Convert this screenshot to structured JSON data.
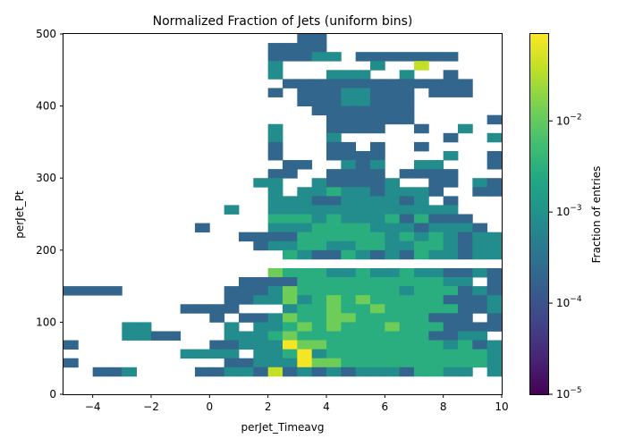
{
  "chart_data": {
    "type": "heatmap",
    "title": "Normalized Fraction of Jets (uniform bins)",
    "xlabel": "perJet_Timeavg",
    "ylabel": "perJet_Pt",
    "xlim": [
      -5,
      10
    ],
    "ylim": [
      0,
      500
    ],
    "x_ticks": [
      -4,
      -2,
      0,
      2,
      4,
      6,
      8,
      10
    ],
    "y_ticks": [
      0,
      100,
      200,
      300,
      400,
      500
    ],
    "x_tick_labels": [
      "−4",
      "−2",
      "0",
      "2",
      "4",
      "6",
      "8",
      "10"
    ],
    "y_tick_labels": [
      "0",
      "100",
      "200",
      "300",
      "400",
      "500"
    ],
    "bin_size": {
      "x": 0.5,
      "y": 12.5
    },
    "x_bin_start": -5,
    "colormap": "viridis",
    "colorbar": {
      "label": "Fraction of entries",
      "scale": "log",
      "range": [
        1e-05,
        0.09
      ],
      "tick_labels": [
        {
          "value": 1e-05,
          "base": "10",
          "exp": "−5"
        },
        {
          "value": 0.0001,
          "base": "10",
          "exp": "−4"
        },
        {
          "value": 0.001,
          "base": "10",
          "exp": "−3"
        },
        {
          "value": 0.01,
          "base": "10",
          "exp": "−2"
        }
      ]
    },
    "grid": false,
    "rows": [
      {
        "y_low": 487.5,
        "x0": -5,
        "values": "................zz"
      },
      {
        "y_low": 475,
        "x0": -5,
        "values": "..............zzzz"
      },
      {
        "y_low": 462.5,
        "x0": -5,
        "values": "..............zzzaa.zzzzzzz"
      },
      {
        "y_low": 450,
        "x0": -5,
        "values": "..............a......a..d"
      },
      {
        "y_low": 437.5,
        "x0": -5,
        "values": "..............a...aaa..a..z"
      },
      {
        "y_low": 425,
        "x0": -5,
        "values": "...............zzzzzzzzzzzzz"
      },
      {
        "y_low": 412.5,
        "x0": -5,
        "values": "..............z.zzzaazzz.zzz"
      },
      {
        "y_low": 400,
        "x0": -5,
        "values": "................zzzaazzz"
      },
      {
        "y_low": 387.5,
        "x0": -5,
        "values": ".................zzzzzzz"
      },
      {
        "y_low": 375,
        "x0": -5,
        "values": "..................zzzzzz.....zzz"
      },
      {
        "y_low": 362.5,
        "x0": -5,
        "values": "..............a...zzzz..z..a..z"
      },
      {
        "y_low": 350,
        "x0": -5,
        "values": "..............a...a.......z..a"
      },
      {
        "y_low": 337.5,
        "x0": -5,
        "values": "..............z...zz.z..z.....a"
      },
      {
        "y_low": 325,
        "x0": -5,
        "values": "..............z...zzzz....a..z.z"
      },
      {
        "y_low": 312.5,
        "x0": -5,
        "values": "...............zz..aza..aa...zz"
      },
      {
        "y_low": 300,
        "x0": -5,
        "values": "..............zz..zzzz.zzzz...zzz"
      },
      {
        "y_low": 287.5,
        "x0": -5,
        "values": ".............aa..azzzza..zz.azz"
      },
      {
        "y_low": 275,
        "x0": -5,
        "values": "..............a.aabaazaaaz..zz"
      },
      {
        "y_low": 262.5,
        "x0": -5,
        "values": "..............aaazzaaaaza.z"
      },
      {
        "y_low": 250,
        "x0": -5,
        "values": "...........a..aaaaaaaaaaaaa.................a"
      },
      {
        "y_low": 237.5,
        "x0": -5,
        "values": "..............bbbabaaabzbzzz"
      },
      {
        "y_low": 225,
        "x0": -5,
        "values": ".........z....aaabbbbaaazaaaz"
      },
      {
        "y_low": 212.5,
        "x0": -5,
        "values": "............zzzzbbbbbbababazaaa"
      },
      {
        "y_low": 200,
        "x0": -5,
        "values": ".............zaabbaabbaabbazaa"
      },
      {
        "y_low": 187.5,
        "x0": -5,
        "values": "...............bazzbazazbaazaa.za"
      },
      {
        "y_low": 175,
        "x0": -5,
        "values": ".................................."
      },
      {
        "y_low": 162.5,
        "x0": -5,
        "values": "..............cbbbaabaabaazzazza...z"
      },
      {
        "y_low": 150,
        "x0": -5,
        "values": "............zzzzbbbbbbbbbbaa.zz...z....z"
      },
      {
        "y_low": 137.5,
        "x0": -5,
        "values": "zzzz.......zzzacbbbbbbbabbbzaz.....z"
      },
      {
        "y_low": 125,
        "x0": -5,
        "values": "...........zzaacabcbcbbbbbzzza"
      },
      {
        "y_low": 112.5,
        "x0": -5,
        "values": "........zzzz...abbcbbcbbbbbzza.....a"
      },
      {
        "y_low": 100,
        "x0": -5,
        "values": "..........z.zzacbbccbbbbbzzz.z....z"
      },
      {
        "y_low": 87.5,
        "x0": -5,
        "values": "....aa.....a.aabcbcbbbcbbbzzzzz..z"
      },
      {
        "y_low": 75,
        "x0": -5,
        "values": "....aazz...aaabcbbbbbbbbbzzaa....a"
      },
      {
        "y_low": 62.5,
        "x0": -5,
        "values": "z.........zzaaaeccbbbbbbbbabzaa.a.a"
      },
      {
        "y_low": 50,
        "x0": -5,
        "values": "........aaaa.aabeabbbbbbbbbbbaz...a..a.z"
      },
      {
        "y_low": 37.5,
        "x0": -5,
        "values": "z..........zzaaaeccbbbbbbbbbbaz..a.zzza"
      },
      {
        "y_low": 25,
        "x0": -5,
        "values": "..zza....zzaazdzazazaaazbbaa.a..z"
      },
      {
        "y_low": 12.5,
        "x0": -5,
        "values": "......................................"
      }
    ],
    "value_levels": {
      "z": 0.0002,
      "a": 0.0008,
      "b": 0.003,
      "c": 0.012,
      "d": 0.04,
      "e": 0.08
    }
  }
}
